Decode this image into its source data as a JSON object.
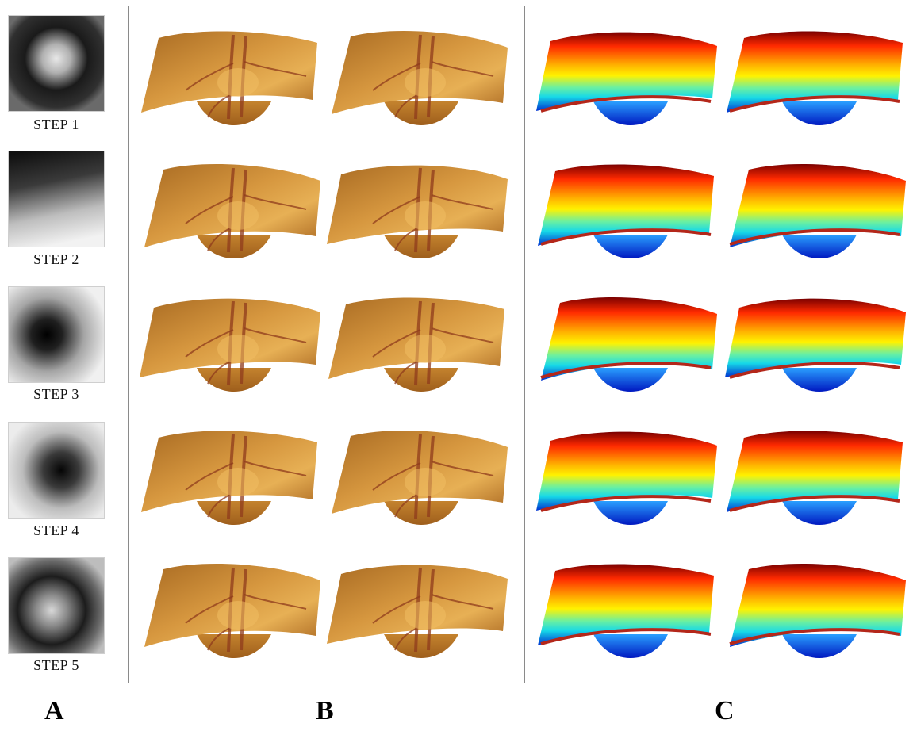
{
  "figure": {
    "panel_labels": {
      "a": "A",
      "b": "B",
      "c": "C"
    },
    "steps": [
      {
        "label": "STEP 1"
      },
      {
        "label": "STEP 2"
      },
      {
        "label": "STEP 3"
      },
      {
        "label": "STEP 4"
      },
      {
        "label": "STEP 5"
      }
    ],
    "colors": {
      "fundus_base": "#b9782a",
      "fundus_light": "#e1a44a",
      "vessel": "#8f3b1c",
      "jet_dark_red": "#8b0000",
      "jet_red": "#ff2a00",
      "jet_yellow": "#ffe600",
      "jet_cyan": "#17d9e8",
      "jet_blue": "#0036d8",
      "divider": "#8a8a8a"
    }
  }
}
